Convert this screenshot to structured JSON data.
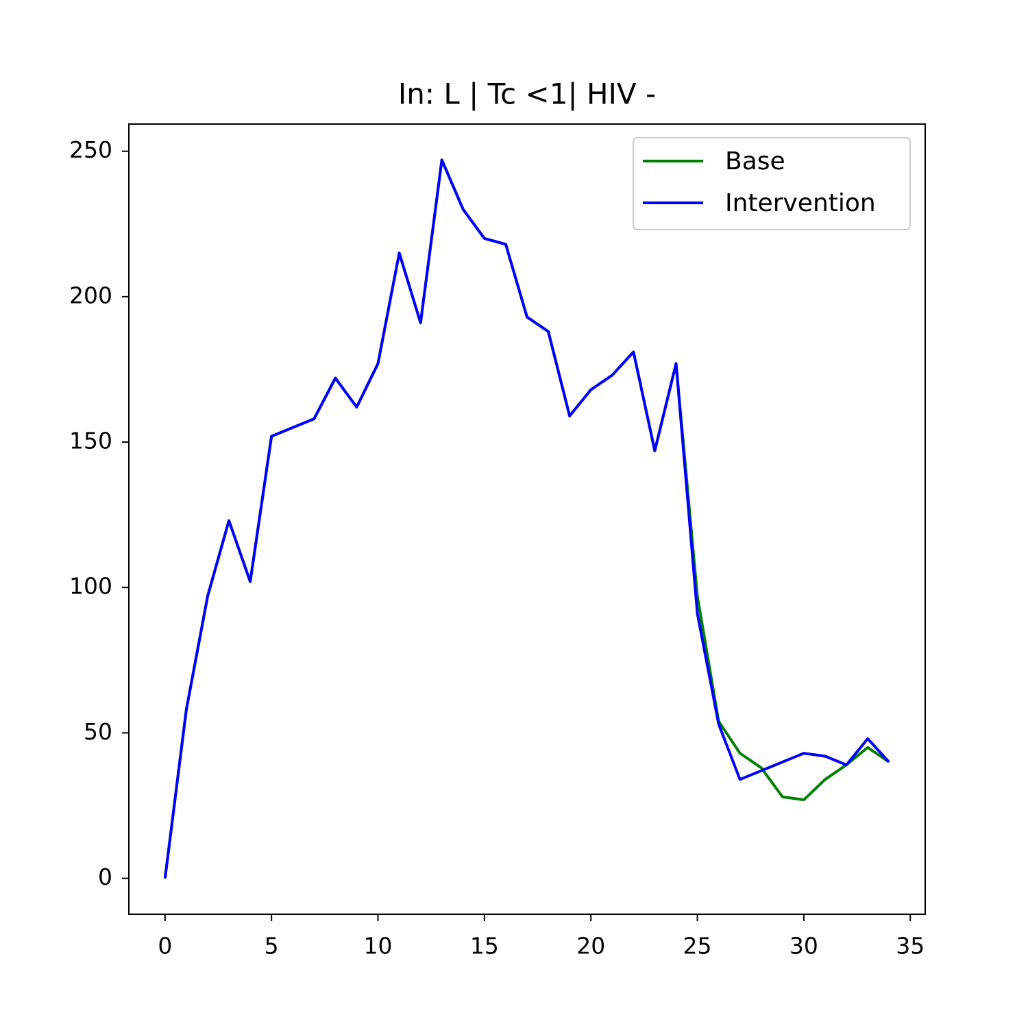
{
  "chart_data": {
    "type": "line",
    "title": "In: L | Tc <1| HIV -",
    "x": [
      0,
      1,
      2,
      3,
      4,
      5,
      6,
      7,
      8,
      9,
      10,
      11,
      12,
      13,
      14,
      15,
      16,
      17,
      18,
      19,
      20,
      21,
      22,
      23,
      24,
      25,
      26,
      27,
      28,
      29,
      30,
      31,
      32,
      33,
      34
    ],
    "series": [
      {
        "name": "Base",
        "color": "#008000",
        "values": [
          0,
          58,
          97,
          123,
          102,
          152,
          155,
          158,
          172,
          162,
          177,
          215,
          191,
          247,
          230,
          220,
          218,
          193,
          188,
          159,
          168,
          173,
          181,
          147,
          177,
          97,
          54,
          43,
          38,
          28,
          27,
          34,
          39,
          45,
          40
        ]
      },
      {
        "name": "Intervention",
        "color": "#0000ff",
        "values": [
          0,
          58,
          97,
          123,
          102,
          152,
          155,
          158,
          172,
          162,
          177,
          215,
          191,
          247,
          230,
          220,
          218,
          193,
          188,
          159,
          168,
          173,
          181,
          147,
          177,
          91,
          53,
          34,
          37,
          40,
          43,
          42,
          39,
          48,
          40
        ]
      }
    ],
    "xlim": [
      -1.7,
      35.7
    ],
    "xticks": [
      0,
      5,
      10,
      15,
      20,
      25,
      30,
      35
    ],
    "ylim": [
      -12.35,
      259.35
    ],
    "yticks": [
      0,
      50,
      100,
      150,
      200,
      250
    ],
    "legend": "upper right",
    "grid": false
  }
}
